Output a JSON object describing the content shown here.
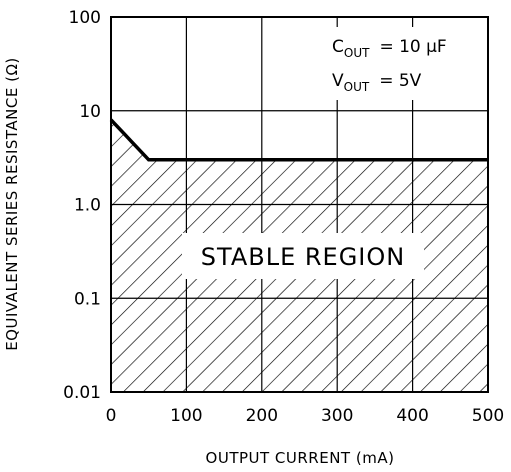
{
  "chart_data": {
    "type": "area",
    "xlabel": "OUTPUT CURRENT (mA)",
    "ylabel": "EQUIVALENT SERIES RESISTANCE (Ω)",
    "xlim": [
      0,
      500
    ],
    "ylim": [
      0.01,
      100
    ],
    "yscale": "log",
    "grid": true,
    "x_ticks": [
      "0",
      "100",
      "200",
      "300",
      "400",
      "500"
    ],
    "y_ticks": [
      "0.01",
      "0.1",
      "1.0",
      "10",
      "100"
    ],
    "series": [
      {
        "x": [
          0,
          50,
          500
        ],
        "y": [
          8,
          3,
          3
        ]
      }
    ],
    "annotations": {
      "cout_main": "C",
      "cout_sub": "OUT",
      "cout_value": "= 10 μF",
      "vout_main": "V",
      "vout_sub": "OUT",
      "vout_value": "= 5V",
      "region_label": "STABLE REGION"
    }
  }
}
